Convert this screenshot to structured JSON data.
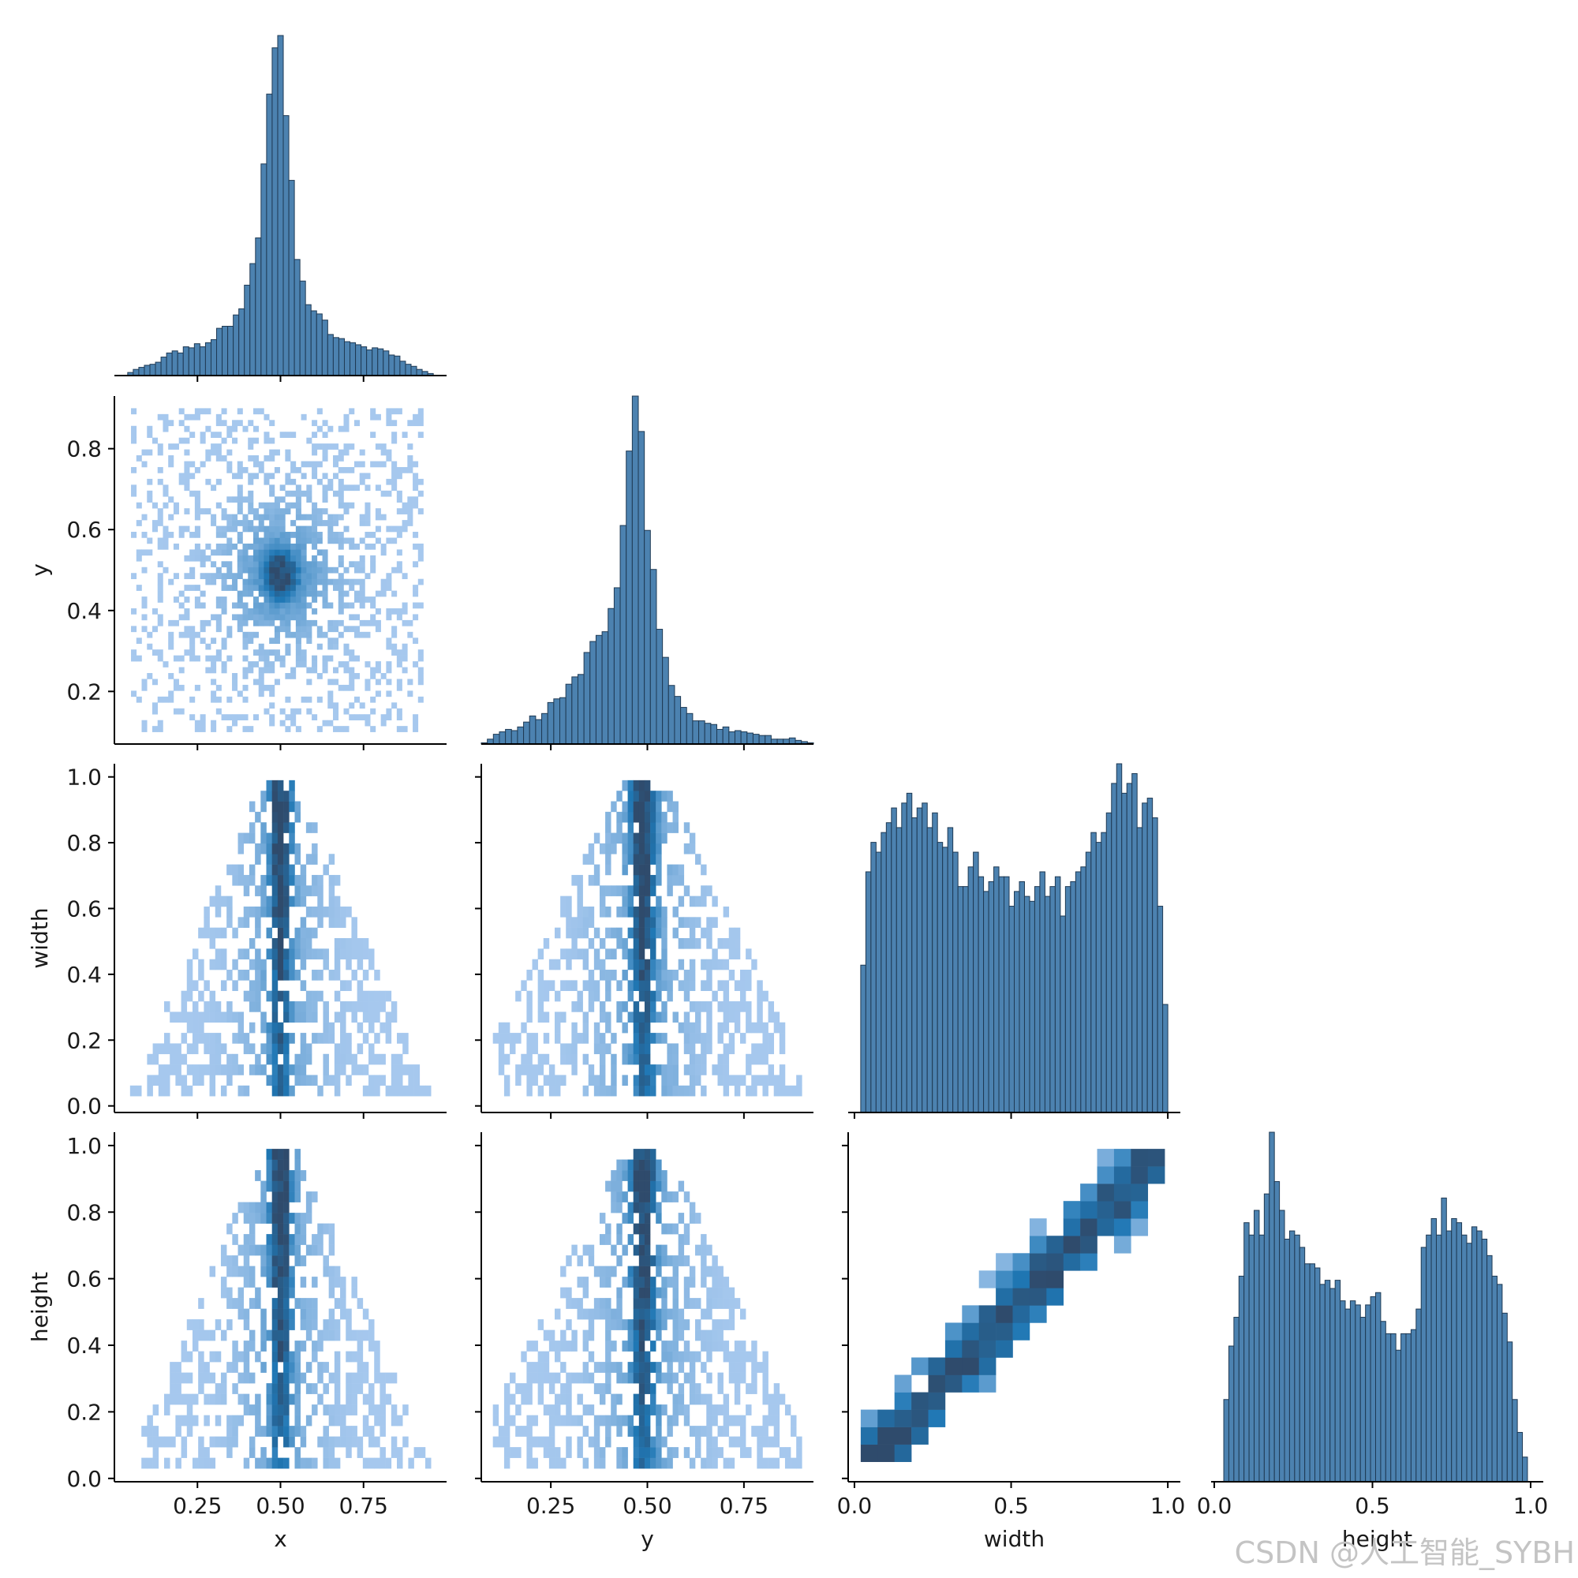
{
  "watermark": "CSDN @人工智能_SYBH",
  "chart_data": {
    "type": "pairplot",
    "variables": [
      "x",
      "y",
      "width",
      "height"
    ],
    "axis_labels": {
      "x": "x",
      "y": "y",
      "width": "width",
      "height": "height"
    },
    "corner": true,
    "ranges": {
      "x": [
        0.0,
        1.0
      ],
      "y": [
        0.07,
        0.93
      ],
      "width": [
        -0.02,
        1.04
      ],
      "height": [
        -0.01,
        1.04
      ]
    },
    "ticks": {
      "x": {
        "values": [
          0.25,
          0.5,
          0.75
        ],
        "labels": [
          "0.25",
          "0.50",
          "0.75"
        ]
      },
      "y": {
        "values": [
          0.2,
          0.4,
          0.6,
          0.8
        ],
        "labels": [
          "0.2",
          "0.4",
          "0.6",
          "0.8"
        ],
        "bottom_values": [
          0.25,
          0.5,
          0.75
        ],
        "bottom_labels": [
          "0.25",
          "0.50",
          "0.75"
        ]
      },
      "width": {
        "values": [
          0.0,
          0.2,
          0.4,
          0.6,
          0.8,
          1.0
        ],
        "labels": [
          "0.0",
          "0.2",
          "0.4",
          "0.6",
          "0.8",
          "1.0"
        ],
        "bottom_values": [
          0.0,
          0.5,
          1.0
        ],
        "bottom_labels": [
          "0.0",
          "0.5",
          "1.0"
        ]
      },
      "height": {
        "values": [
          0.0,
          0.2,
          0.4,
          0.6,
          0.8,
          1.0
        ],
        "labels": [
          "0.0",
          "0.2",
          "0.4",
          "0.6",
          "0.8",
          "1.0"
        ],
        "bottom_values": [
          0.0,
          0.5,
          1.0
        ],
        "bottom_labels": [
          "0.0",
          "0.5",
          "1.0"
        ]
      }
    },
    "colors": {
      "hist_fill": "#4c82b0",
      "hist_edge": "#1f3a54",
      "heat_low": "#a6c8ee",
      "heat_high": "#1f77b4",
      "heat_peak": "#2f4b6c"
    },
    "histograms": {
      "x": {
        "bin_range": [
          0.04,
          0.96
        ],
        "bins": 55,
        "counts": [
          3,
          6,
          8,
          10,
          11,
          13,
          18,
          22,
          24,
          22,
          28,
          27,
          31,
          28,
          32,
          35,
          46,
          48,
          48,
          59,
          65,
          88,
          109,
          134,
          206,
          274,
          319,
          331,
          253,
          190,
          113,
          92,
          69,
          63,
          60,
          54,
          40,
          37,
          36,
          33,
          32,
          30,
          28,
          25,
          27,
          26,
          24,
          20,
          19,
          14,
          11,
          9,
          6,
          4,
          2
        ]
      },
      "y": {
        "bin_range": [
          0.07,
          0.93
        ],
        "bins": 55,
        "counts": [
          1,
          4,
          8,
          10,
          12,
          11,
          14,
          18,
          23,
          20,
          25,
          34,
          37,
          38,
          49,
          55,
          57,
          75,
          84,
          89,
          92,
          111,
          128,
          179,
          240,
          285,
          256,
          175,
          143,
          94,
          71,
          48,
          39,
          30,
          25,
          19,
          19,
          17,
          16,
          12,
          14,
          10,
          11,
          10,
          9,
          8,
          7,
          7,
          4,
          4,
          4,
          5,
          3,
          2,
          1
        ]
      },
      "width": {
        "bin_range": [
          0.02,
          1.0
        ],
        "bins": 60,
        "counts": [
          30,
          49,
          55,
          53,
          57,
          59,
          62,
          58,
          63,
          65,
          60,
          62,
          63,
          58,
          61,
          55,
          54,
          58,
          53,
          46,
          46,
          50,
          53,
          48,
          45,
          47,
          50,
          48,
          48,
          42,
          45,
          47,
          44,
          43,
          46,
          49,
          44,
          46,
          48,
          40,
          46,
          47,
          49,
          50,
          53,
          57,
          55,
          57,
          61,
          67,
          71,
          65,
          67,
          69,
          58,
          63,
          64,
          60,
          42,
          22
        ]
      },
      "height": {
        "bin_range": [
          0.03,
          0.99
        ],
        "bins": 60,
        "counts": [
          20,
          33,
          40,
          50,
          63,
          60,
          66,
          60,
          70,
          85,
          73,
          66,
          59,
          61,
          60,
          57,
          53,
          53,
          52,
          48,
          49,
          47,
          49,
          44,
          42,
          44,
          43,
          40,
          43,
          45,
          46,
          39,
          36,
          36,
          32,
          36,
          36,
          37,
          42,
          57,
          60,
          64,
          60,
          69,
          61,
          64,
          63,
          60,
          58,
          62,
          61,
          59,
          55,
          50,
          48,
          41,
          34,
          20,
          12,
          6
        ]
      }
    },
    "heatmaps": {
      "y~x": {
        "description": "dense core at x≈0.50, y≈0.49; sparse scatter across x 0.05–0.93, y 0.1–0.9"
      },
      "width~x": {
        "description": "triangular: narrow near x=0.5 at width≈1.0, widening to x 0.05–0.93 near width 0"
      },
      "width~y": {
        "description": "triangular: narrow near y=0.49 at width≈1.0, widening to y 0.1–0.88 near width 0"
      },
      "height~x": {
        "description": "triangular: narrow near x=0.5 at height≈1.0, widening to x 0.05–0.93 near height 0"
      },
      "height~y": {
        "description": "triangular: narrow near y=0.49 at height≈1.0, widening to y 0.1–0.88 near height 0"
      },
      "height~width": {
        "description": "strong positive diagonal; height ≈ width"
      }
    },
    "grid": false,
    "legend": "none"
  }
}
